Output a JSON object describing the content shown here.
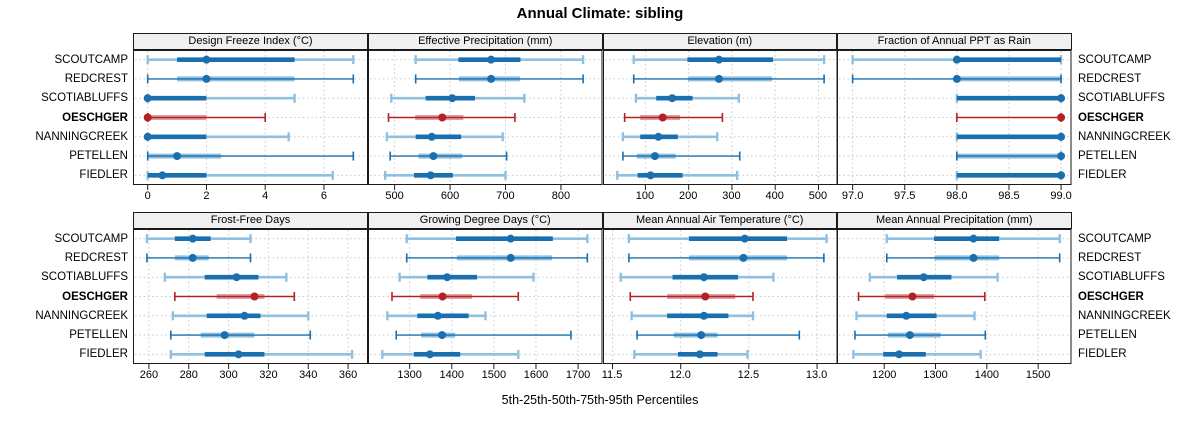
{
  "figure": {
    "title": "Annual Climate: sibling",
    "xlabel": "5th-25th-50th-75th-95th Percentiles"
  },
  "sites": [
    "SCOUTCAMP",
    "REDCREST",
    "SCOTIABLUFFS",
    "OESCHGER",
    "NANNINGCREEK",
    "PETELLEN",
    "FIEDLER"
  ],
  "highlight_site": "OESCHGER",
  "colors": {
    "blue_dark": "#1a6fae",
    "blue_light": "#90c0e0",
    "red_dark": "#b22225",
    "red_light": "#e0a0a0",
    "grid": "#c9c9c9",
    "strip_bg": "#f0f0f0",
    "border": "#1a1a1a"
  },
  "chart_data": {
    "type": "scatter",
    "mark": "median dot with 5th-95th percentile line (end caps) and 25th-75th percentile band",
    "title": "Annual Climate: sibling",
    "xlabel": "5th-25th-50th-75th-95th Percentiles",
    "categories": [
      "SCOUTCAMP",
      "REDCREST",
      "SCOTIABLUFFS",
      "OESCHGER",
      "NANNINGCREEK",
      "PETELLEN",
      "FIEDLER"
    ],
    "percentile_order": [
      "5th",
      "25th",
      "50th",
      "75th",
      "95th"
    ],
    "grid": "dotted",
    "legend_position": "none",
    "panels": [
      {
        "title": "Design Freeze Index (°C)",
        "grid_position": {
          "row": 1,
          "col": 1
        },
        "xlim": [
          -0.5,
          7.5
        ],
        "ticks": [
          0,
          2,
          4,
          6
        ],
        "tick_labels": [
          "0",
          "2",
          "4",
          "6"
        ],
        "values": [
          [
            0,
            1,
            2,
            5,
            7
          ],
          [
            0,
            1,
            2,
            5,
            7
          ],
          [
            0,
            0,
            0,
            2,
            5
          ],
          [
            0,
            0,
            0,
            2,
            4
          ],
          [
            0,
            0,
            0,
            2,
            4.8
          ],
          [
            0,
            0,
            1,
            2.5,
            7
          ],
          [
            0,
            0,
            0.5,
            2,
            6.3
          ]
        ]
      },
      {
        "title": "Effective Precipitation (mm)",
        "grid_position": {
          "row": 1,
          "col": 2
        },
        "xlim": [
          452,
          875
        ],
        "ticks": [
          500,
          600,
          700,
          800
        ],
        "tick_labels": [
          "500",
          "600",
          "700",
          "800"
        ],
        "values": [
          [
            538,
            615,
            674,
            727,
            840
          ],
          [
            538,
            616,
            674,
            726,
            840
          ],
          [
            494,
            556,
            604,
            645,
            734
          ],
          [
            489,
            537,
            586,
            624,
            717
          ],
          [
            486,
            538,
            567,
            620,
            695
          ],
          [
            492,
            543,
            570,
            622,
            702
          ],
          [
            483,
            535,
            565,
            605,
            700
          ]
        ]
      },
      {
        "title": "Elevation (m)",
        "grid_position": {
          "row": 1,
          "col": 3
        },
        "xlim": [
          2,
          544
        ],
        "ticks": [
          100,
          200,
          300,
          400,
          500
        ],
        "tick_labels": [
          "100",
          "200",
          "300",
          "400",
          "500"
        ],
        "values": [
          [
            73,
            197,
            270,
            395,
            513
          ],
          [
            73,
            198,
            270,
            393,
            513
          ],
          [
            78,
            125,
            162,
            209,
            316
          ],
          [
            52,
            88,
            140,
            180,
            278
          ],
          [
            48,
            88,
            130,
            175,
            266
          ],
          [
            48,
            80,
            122,
            170,
            318
          ],
          [
            35,
            82,
            112,
            186,
            312
          ]
        ]
      },
      {
        "title": "Fraction of Annual PPT as Rain",
        "grid_position": {
          "row": 1,
          "col": 4
        },
        "xlim": [
          96.85,
          99.1
        ],
        "ticks": [
          97.0,
          97.5,
          98.0,
          98.5,
          99.0
        ],
        "tick_labels": [
          "97.0",
          "97.5",
          "98.0",
          "98.5",
          "99.0"
        ],
        "values": [
          [
            97,
            98,
            98,
            99,
            99
          ],
          [
            97,
            98,
            98,
            99,
            99
          ],
          [
            98,
            98,
            99,
            99,
            99
          ],
          [
            98,
            99,
            99,
            99,
            99
          ],
          [
            98,
            98,
            99,
            99,
            99
          ],
          [
            98,
            98,
            99,
            99,
            99
          ],
          [
            98,
            98,
            99,
            99,
            99
          ]
        ]
      },
      {
        "title": "Frost-Free Days",
        "grid_position": {
          "row": 2,
          "col": 1
        },
        "xlim": [
          252,
          370
        ],
        "ticks": [
          260,
          280,
          300,
          320,
          340,
          360
        ],
        "tick_labels": [
          "260",
          "280",
          "300",
          "320",
          "340",
          "360"
        ],
        "values": [
          [
            259,
            273,
            282,
            291,
            311
          ],
          [
            259,
            273,
            282,
            290,
            311
          ],
          [
            268,
            288,
            304,
            315,
            329
          ],
          [
            273,
            294,
            313,
            318,
            333
          ],
          [
            272,
            289,
            308,
            316,
            340
          ],
          [
            271,
            286,
            298,
            313,
            341
          ],
          [
            271,
            288,
            305,
            318,
            362
          ]
        ]
      },
      {
        "title": "Growing Degree Days (°C)",
        "grid_position": {
          "row": 2,
          "col": 2
        },
        "xlim": [
          1201,
          1758
        ],
        "ticks": [
          1300,
          1400,
          1500,
          1600,
          1700
        ],
        "tick_labels": [
          "1300",
          "1400",
          "1500",
          "1600",
          "1700"
        ],
        "values": [
          [
            1293,
            1410,
            1540,
            1640,
            1722
          ],
          [
            1293,
            1412,
            1540,
            1638,
            1722
          ],
          [
            1276,
            1342,
            1389,
            1460,
            1594
          ],
          [
            1258,
            1325,
            1378,
            1448,
            1558
          ],
          [
            1247,
            1318,
            1367,
            1440,
            1480
          ],
          [
            1268,
            1327,
            1377,
            1408,
            1683
          ],
          [
            1235,
            1310,
            1348,
            1420,
            1558
          ]
        ]
      },
      {
        "title": "Mean Annual Air Temperature (°C)",
        "grid_position": {
          "row": 2,
          "col": 3
        },
        "xlim": [
          11.43,
          13.15
        ],
        "ticks": [
          11.5,
          12.0,
          12.5,
          13.0
        ],
        "tick_labels": [
          "11.5",
          "12.0",
          "12.5",
          "13.0"
        ],
        "values": [
          [
            11.62,
            12.06,
            12.47,
            12.78,
            13.07
          ],
          [
            11.62,
            12.06,
            12.46,
            12.78,
            13.05
          ],
          [
            11.56,
            11.94,
            12.17,
            12.42,
            12.68
          ],
          [
            11.63,
            11.9,
            12.18,
            12.4,
            12.53
          ],
          [
            11.64,
            11.9,
            12.17,
            12.35,
            12.53
          ],
          [
            11.68,
            11.95,
            12.15,
            12.27,
            12.87
          ],
          [
            11.66,
            11.98,
            12.14,
            12.27,
            12.49
          ]
        ]
      },
      {
        "title": "Mean Annual Precipitation (mm)",
        "grid_position": {
          "row": 2,
          "col": 4
        },
        "xlim": [
          1108,
          1565
        ],
        "ticks": [
          1200,
          1300,
          1400,
          1500
        ],
        "tick_labels": [
          "1200",
          "1300",
          "1400",
          "1500"
        ],
        "values": [
          [
            1205,
            1297,
            1374,
            1424,
            1542
          ],
          [
            1205,
            1298,
            1374,
            1424,
            1542
          ],
          [
            1172,
            1225,
            1277,
            1331,
            1421
          ],
          [
            1150,
            1202,
            1255,
            1297,
            1396
          ],
          [
            1146,
            1205,
            1243,
            1302,
            1376
          ],
          [
            1143,
            1207,
            1250,
            1310,
            1397
          ],
          [
            1140,
            1198,
            1229,
            1281,
            1388
          ]
        ]
      }
    ]
  }
}
